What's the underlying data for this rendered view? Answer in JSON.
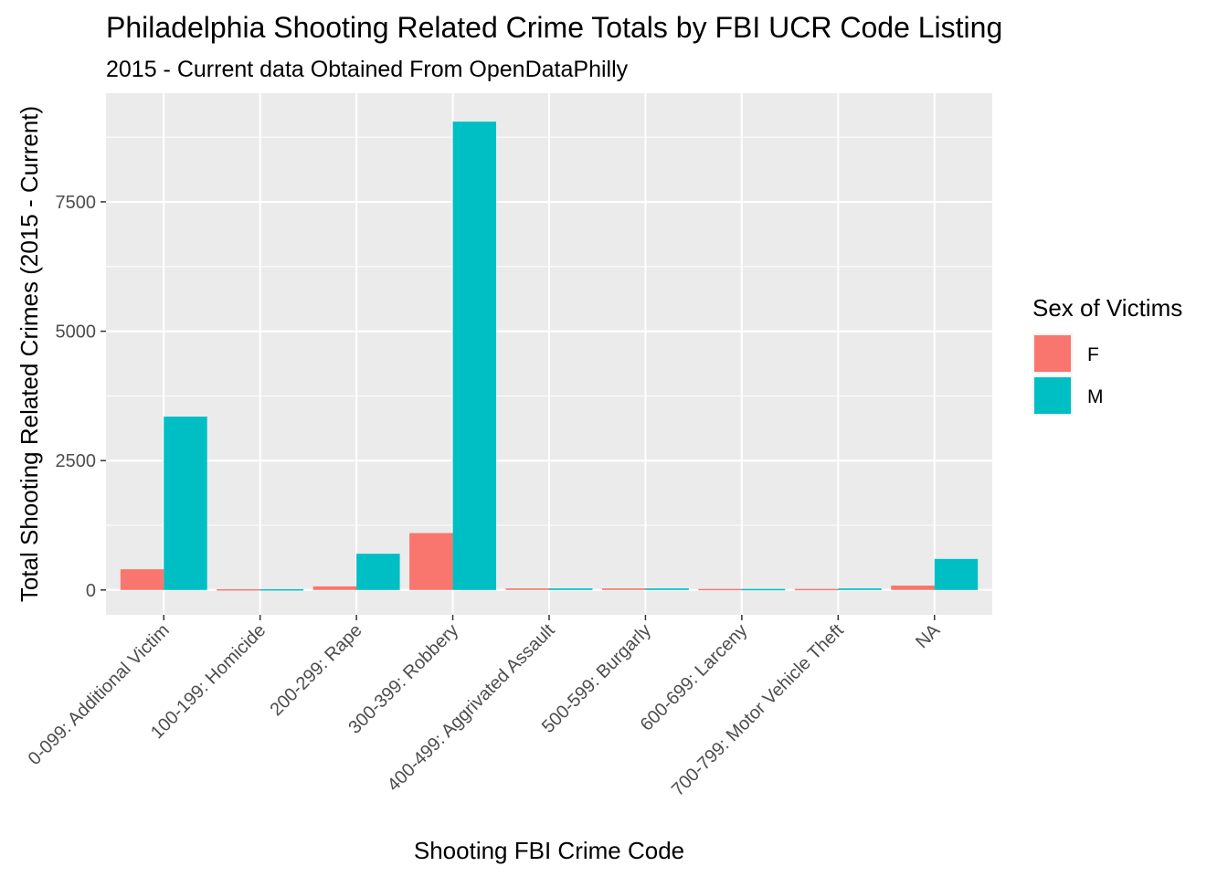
{
  "chart_data": {
    "type": "bar",
    "title": "Philadelphia Shooting Related Crime Totals by FBI UCR Code Listing",
    "subtitle": "2015 - Current data Obtained From OpenDataPhilly",
    "xlabel": "Shooting FBI Crime Code",
    "ylabel": "Total Shooting Related Crimes (2015 - Current)",
    "categories": [
      "0-099: Additional Victim",
      "100-199: Homicide",
      "200-299: Rape",
      "300-399: Robbery",
      "400-499: Aggrivated Assault",
      "500-599: Burgarly",
      "600-699: Larceny",
      "700-799: Motor Vehicle Theft",
      "NA"
    ],
    "series": [
      {
        "name": "F",
        "color": "#F8766D",
        "values": [
          400,
          15,
          70,
          1100,
          30,
          30,
          20,
          20,
          85
        ]
      },
      {
        "name": "M",
        "color": "#00BFC4",
        "values": [
          3350,
          15,
          700,
          9050,
          30,
          30,
          20,
          30,
          600
        ]
      }
    ],
    "ylim": [
      -480,
      9600
    ],
    "yticks": [
      0,
      2500,
      5000,
      7500
    ],
    "ytick_labels": [
      "0",
      "2500",
      "5000",
      "7500"
    ],
    "legend": {
      "title": "Sex of Victims",
      "placement": "right"
    },
    "grid": true
  }
}
